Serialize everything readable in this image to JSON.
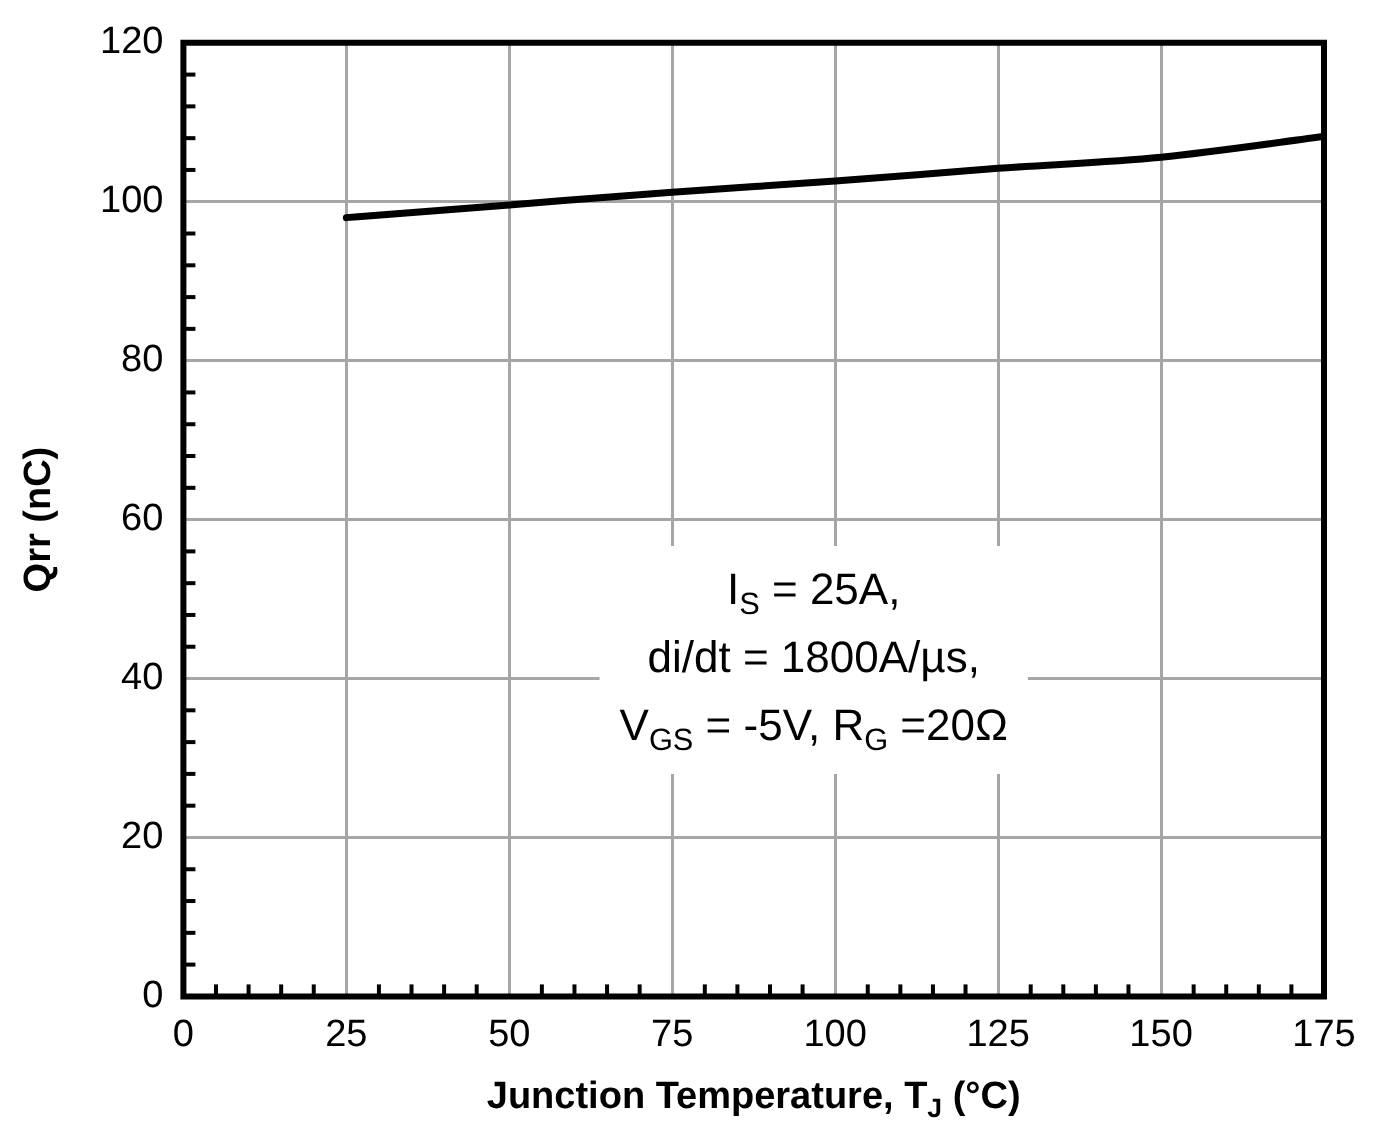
{
  "chart_data": {
    "type": "line",
    "xlabel": "Junction Temperature, T$_{J}$ (°C)",
    "ylabel": "Qrr (nC)",
    "x": [
      25,
      50,
      75,
      100,
      125,
      150,
      175
    ],
    "series": [
      {
        "color": "#000000",
        "values": [
          98.0,
          99.6,
          101.2,
          102.6,
          104.2,
          105.6,
          108.2
        ]
      }
    ],
    "xlim": [
      0,
      175
    ],
    "xticks": [
      0,
      {
        "value": 5,
        "label": null
      },
      {
        "value": 10,
        "label": null
      },
      {
        "value": 15,
        "label": null
      },
      {
        "value": 20,
        "label": null
      },
      25,
      {
        "value": 30,
        "label": null
      },
      {
        "value": 35,
        "label": null
      },
      {
        "value": 40,
        "label": null
      },
      {
        "value": 45,
        "label": null
      },
      50,
      {
        "value": 55,
        "label": null
      },
      {
        "value": 60,
        "label": null
      },
      {
        "value": 65,
        "label": null
      },
      {
        "value": 70,
        "label": null
      },
      75,
      {
        "value": 80,
        "label": null
      },
      {
        "value": 85,
        "label": null
      },
      {
        "value": 90,
        "label": null
      },
      {
        "value": 95,
        "label": null
      },
      100,
      {
        "value": 105,
        "label": null
      },
      {
        "value": 110,
        "label": null
      },
      {
        "value": 115,
        "label": null
      },
      {
        "value": 120,
        "label": null
      },
      125,
      {
        "value": 130,
        "label": null
      },
      {
        "value": 135,
        "label": null
      },
      {
        "value": 140,
        "label": null
      },
      {
        "value": 145,
        "label": null
      },
      150,
      {
        "value": 155,
        "label": null
      },
      {
        "value": 160,
        "label": null
      },
      {
        "value": 165,
        "label": null
      },
      {
        "value": 170,
        "label": null
      },
      175
    ],
    "ylim": [
      0,
      120
    ],
    "yticks": [
      0,
      {
        "value": 4,
        "label": null
      },
      {
        "value": 8,
        "label": null
      },
      {
        "value": 12,
        "label": null
      },
      {
        "value": 16,
        "label": null
      },
      20,
      {
        "value": 24,
        "label": null
      },
      {
        "value": 28,
        "label": null
      },
      {
        "value": 32,
        "label": null
      },
      {
        "value": 36,
        "label": null
      },
      40,
      {
        "value": 44,
        "label": null
      },
      {
        "value": 48,
        "label": null
      },
      {
        "value": 52,
        "label": null
      },
      {
        "value": 56,
        "label": null
      },
      60,
      {
        "value": 64,
        "label": null
      },
      {
        "value": 68,
        "label": null
      },
      {
        "value": 72,
        "label": null
      },
      {
        "value": 76,
        "label": null
      },
      80,
      {
        "value": 84,
        "label": null
      },
      {
        "value": 88,
        "label": null
      },
      {
        "value": 92,
        "label": null
      },
      {
        "value": 96,
        "label": null
      },
      100,
      {
        "value": 104,
        "label": null
      },
      {
        "value": 108,
        "label": null
      },
      {
        "value": 112,
        "label": null
      },
      {
        "value": 116,
        "label": null
      },
      120
    ],
    "grid": true,
    "marker": "none",
    "line_style": "solid",
    "annotations": [
      "I$_{S}$ = 25A,",
      "di/dt = 1800A/µs,",
      "V$_{GS}$ = -5V, R$_{G}$ =20Ω"
    ]
  }
}
